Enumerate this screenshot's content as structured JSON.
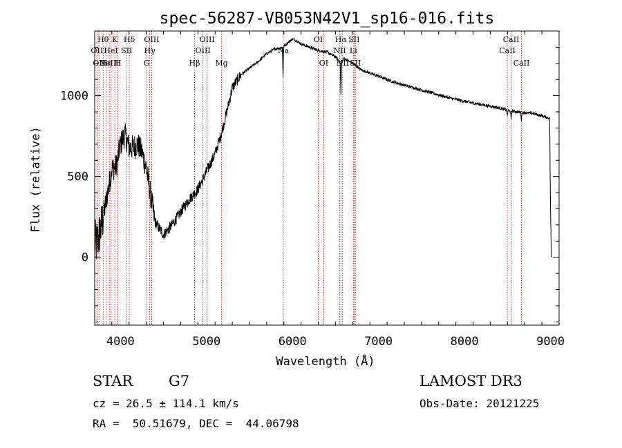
{
  "chart_data": {
    "type": "line",
    "title": "spec-56287-VB053N42V1_sp16-016.fits",
    "xlabel": "Wavelength (Å)",
    "ylabel": "Flux (relative)",
    "xlim": [
      3700,
      9100
    ],
    "ylim": [
      -420,
      1400
    ],
    "xticks": [
      4000,
      5000,
      6000,
      7000,
      8000,
      9000
    ],
    "xtick_labels": [
      "4000",
      "5000",
      "6000",
      "7000",
      "8000",
      "9000"
    ],
    "yticks": [
      0,
      500,
      1000
    ],
    "ytick_labels": [
      "0",
      "500",
      "1000"
    ],
    "series": [
      {
        "name": "spectrum",
        "anchor_x": [
          3700,
          3720,
          3760,
          3800,
          3850,
          3900,
          3950,
          4000,
          4050,
          4100,
          4150,
          4200,
          4250,
          4300,
          4340,
          4400,
          4450,
          4500,
          4600,
          4700,
          4800,
          4900,
          5000,
          5100,
          5180,
          5250,
          5300,
          5400,
          5500,
          5600,
          5700,
          5800,
          5890,
          5950,
          6000,
          6050,
          6100,
          6200,
          6300,
          6400,
          6500,
          6563,
          6600,
          6700,
          6800,
          6900,
          7000,
          7200,
          7400,
          7600,
          7800,
          8000,
          8200,
          8400,
          8500,
          8600,
          8700,
          8800,
          8900,
          8990,
          9000,
          9010
        ],
        "anchor_y": [
          100,
          80,
          150,
          250,
          400,
          550,
          560,
          700,
          760,
          680,
          680,
          700,
          650,
          550,
          420,
          220,
          180,
          140,
          200,
          280,
          360,
          420,
          530,
          640,
          780,
          930,
          1050,
          1130,
          1170,
          1210,
          1260,
          1290,
          1300,
          1330,
          1350,
          1340,
          1320,
          1300,
          1280,
          1270,
          1240,
          1200,
          1230,
          1200,
          1160,
          1140,
          1120,
          1080,
          1050,
          1020,
          990,
          965,
          945,
          925,
          910,
          900,
          895,
          890,
          875,
          860,
          300,
          0
        ],
        "dips": [
          {
            "x": 5890,
            "depth": 180
          },
          {
            "x": 6563,
            "depth": 220
          },
          {
            "x": 8498,
            "depth": 40
          },
          {
            "x": 8542,
            "depth": 60
          },
          {
            "x": 8662,
            "depth": 50
          }
        ],
        "noise": {
          "blue": 160,
          "mid": 70,
          "red": 18
        }
      }
    ],
    "line_markers": [
      {
        "x": 3727,
        "row": 1,
        "label": "OII"
      },
      {
        "x": 3750,
        "row": 2,
        "label": "OII"
      },
      {
        "x": 3798,
        "row": 0,
        "label": "Hθ"
      },
      {
        "x": 3835,
        "row": 2,
        "label": "Hη"
      },
      {
        "x": 3869,
        "row": 2,
        "label": "NeIII"
      },
      {
        "x": 3889,
        "row": 1,
        "label": "HeI"
      },
      {
        "x": 3934,
        "row": 0,
        "label": "K"
      },
      {
        "x": 3969,
        "row": 2,
        "label": "H"
      },
      {
        "x": 4072,
        "row": 1,
        "label": "SII"
      },
      {
        "x": 4102,
        "row": 0,
        "label": "Hδ"
      },
      {
        "x": 4304,
        "row": 2,
        "label": "G"
      },
      {
        "x": 4340,
        "row": 1,
        "label": "Hγ"
      },
      {
        "x": 4363,
        "row": 0,
        "label": "OIII"
      },
      {
        "x": 4861,
        "row": 2,
        "label": "Hβ"
      },
      {
        "x": 4959,
        "row": 1,
        "label": "OIII"
      },
      {
        "x": 5007,
        "row": 0,
        "label": "OIII"
      },
      {
        "x": 5175,
        "row": 2,
        "label": "Mg"
      },
      {
        "x": 5893,
        "row": 1,
        "label": "Na"
      },
      {
        "x": 6300,
        "row": 0,
        "label": "OI"
      },
      {
        "x": 6363,
        "row": 2,
        "label": "OI"
      },
      {
        "x": 6548,
        "row": 1,
        "label": "NII"
      },
      {
        "x": 6563,
        "row": 0,
        "label": "Hα"
      },
      {
        "x": 6583,
        "row": 2,
        "label": "NII"
      },
      {
        "x": 6708,
        "row": 1,
        "label": "Li"
      },
      {
        "x": 6716,
        "row": 0,
        "label": "SII"
      },
      {
        "x": 6731,
        "row": 2,
        "label": "SII"
      },
      {
        "x": 8498,
        "row": 1,
        "label": "CaII"
      },
      {
        "x": 8542,
        "row": 0,
        "label": "CaII"
      },
      {
        "x": 8662,
        "row": 2,
        "label": "CaII"
      }
    ],
    "colors": {
      "spectrum": "#000000",
      "markers": "#cc0000",
      "axes": "#000000"
    }
  },
  "info": {
    "object_class": "STAR",
    "subclass": "G7",
    "survey": "LAMOST DR3",
    "cz": "cz = 26.5 ± 114.1 km/s",
    "obs_date": "Obs-Date: 20121225",
    "coords": "RA =  50.51679, DEC =  44.06798"
  }
}
